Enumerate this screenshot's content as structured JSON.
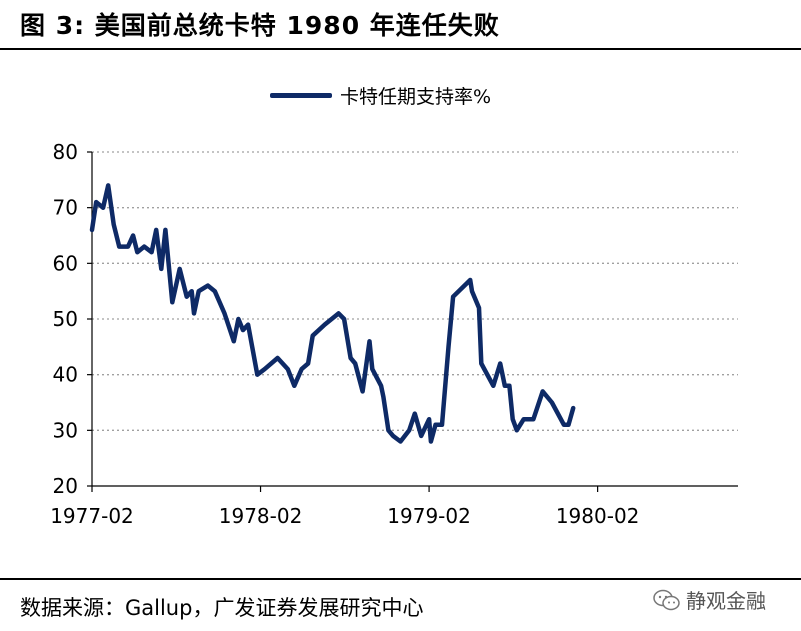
{
  "header": {
    "title": "图 3:  美国前总统卡特 1980 年连任失败"
  },
  "footer": {
    "source": "数据来源：Gallup，广发证券发展研究中心"
  },
  "watermark": {
    "label": "静观金融",
    "icon": "wechat-icon"
  },
  "colors": {
    "line": "#0e2a66",
    "grid": "#a0a0a0",
    "axis": "#000000"
  },
  "chart_data": {
    "type": "line",
    "xlim": [
      "1977-02",
      "1980-12"
    ],
    "ylim": [
      20,
      80
    ],
    "yticks": [
      20,
      30,
      40,
      50,
      60,
      70,
      80
    ],
    "xticks": [
      "1977-02",
      "1978-02",
      "1979-02",
      "1980-02"
    ],
    "grid": "horizontal dotted",
    "legend_position": "top-center",
    "series": [
      {
        "name": "卡特任期支持率%",
        "points": [
          [
            "1977-02-01",
            66
          ],
          [
            "1977-02-10",
            71
          ],
          [
            "1977-02-25",
            70
          ],
          [
            "1977-03-08",
            74
          ],
          [
            "1977-03-20",
            67
          ],
          [
            "1977-04-01",
            63
          ],
          [
            "1977-04-20",
            63
          ],
          [
            "1977-05-01",
            65
          ],
          [
            "1977-05-10",
            62
          ],
          [
            "1977-05-25",
            63
          ],
          [
            "1977-06-10",
            62
          ],
          [
            "1977-06-20",
            66
          ],
          [
            "1977-07-01",
            59
          ],
          [
            "1977-07-10",
            66
          ],
          [
            "1977-07-25",
            53
          ],
          [
            "1977-08-10",
            59
          ],
          [
            "1977-08-25",
            54
          ],
          [
            "1977-09-05",
            55
          ],
          [
            "1977-09-10",
            51
          ],
          [
            "1977-09-20",
            55
          ],
          [
            "1977-10-10",
            56
          ],
          [
            "1977-10-25",
            55
          ],
          [
            "1977-11-15",
            51
          ],
          [
            "1977-12-05",
            46
          ],
          [
            "1977-12-15",
            50
          ],
          [
            "1977-12-25",
            48
          ],
          [
            "1978-01-05",
            49
          ],
          [
            "1978-01-25",
            40
          ],
          [
            "1978-02-10",
            41
          ],
          [
            "1978-03-10",
            43
          ],
          [
            "1978-04-01",
            41
          ],
          [
            "1978-04-15",
            38
          ],
          [
            "1978-05-01",
            41
          ],
          [
            "1978-05-15",
            42
          ],
          [
            "1978-05-25",
            47
          ],
          [
            "1978-06-20",
            49
          ],
          [
            "1978-07-20",
            51
          ],
          [
            "1978-08-01",
            50
          ],
          [
            "1978-08-15",
            43
          ],
          [
            "1978-08-25",
            42
          ],
          [
            "1978-09-10",
            37
          ],
          [
            "1978-09-20",
            43
          ],
          [
            "1978-09-25",
            46
          ],
          [
            "1978-10-01",
            41
          ],
          [
            "1978-10-20",
            38
          ],
          [
            "1978-10-25",
            36
          ],
          [
            "1978-11-05",
            30
          ],
          [
            "1978-11-15",
            29
          ],
          [
            "1978-12-01",
            28
          ],
          [
            "1978-12-20",
            30
          ],
          [
            "1979-01-01",
            33
          ],
          [
            "1979-01-15",
            29
          ],
          [
            "1979-02-01",
            32
          ],
          [
            "1979-02-05",
            28
          ],
          [
            "1979-02-15",
            31
          ],
          [
            "1979-03-01",
            31
          ],
          [
            "1979-03-15",
            45
          ],
          [
            "1979-03-25",
            54
          ],
          [
            "1979-05-01",
            57
          ],
          [
            "1979-05-05",
            55
          ],
          [
            "1979-05-20",
            52
          ],
          [
            "1979-05-25",
            42
          ],
          [
            "1979-06-20",
            38
          ],
          [
            "1979-07-05",
            42
          ],
          [
            "1979-07-15",
            38
          ],
          [
            "1979-07-25",
            38
          ],
          [
            "1979-08-01",
            32
          ],
          [
            "1979-08-10",
            30
          ],
          [
            "1979-08-25",
            32
          ],
          [
            "1979-09-15",
            32
          ],
          [
            "1979-10-05",
            37
          ],
          [
            "1979-10-25",
            35
          ],
          [
            "1979-11-20",
            31
          ],
          [
            "1979-11-30",
            31
          ],
          [
            "1979-12-10",
            34
          ]
        ]
      }
    ]
  }
}
